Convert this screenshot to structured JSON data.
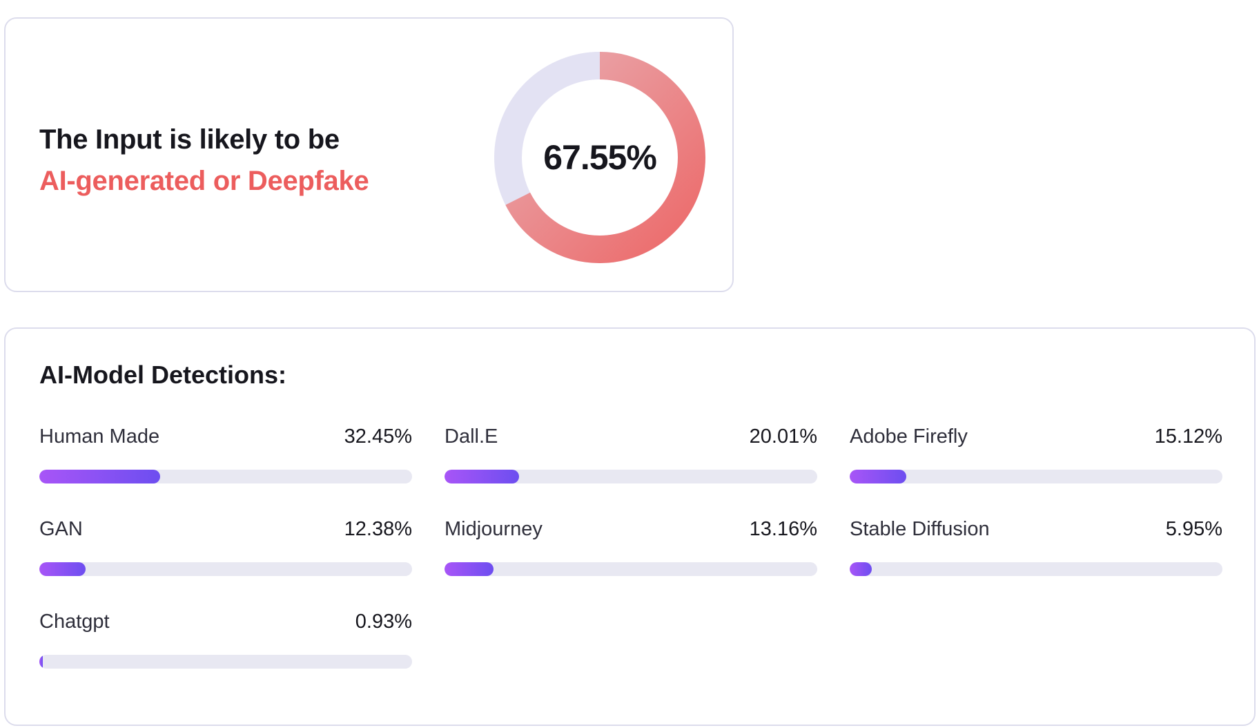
{
  "result": {
    "line1": "The Input is likely to be",
    "line2": "AI-generated or Deepfake",
    "score_label": "67.55%",
    "score_fraction": 0.6755,
    "colors": {
      "accent": "#ec5d5d",
      "ring_track": "#e3e2f3",
      "ring_fill_start": "#ec6969",
      "ring_fill_end": "#e9adb2"
    }
  },
  "detections": {
    "title": "AI-Model Detections:",
    "bar_colors": [
      "#a855f7",
      "#6d4ef0"
    ],
    "items": [
      {
        "label": "Human Made",
        "value": "32.45%",
        "fraction": 0.3245
      },
      {
        "label": "Dall.E",
        "value": "20.01%",
        "fraction": 0.2001
      },
      {
        "label": "Adobe Firefly",
        "value": "15.12%",
        "fraction": 0.1512
      },
      {
        "label": "GAN",
        "value": "12.38%",
        "fraction": 0.1238
      },
      {
        "label": "Midjourney",
        "value": "13.16%",
        "fraction": 0.1316
      },
      {
        "label": "Stable Diffusion",
        "value": "5.95%",
        "fraction": 0.0595
      },
      {
        "label": "Chatgpt",
        "value": "0.93%",
        "fraction": 0.0093
      }
    ]
  }
}
